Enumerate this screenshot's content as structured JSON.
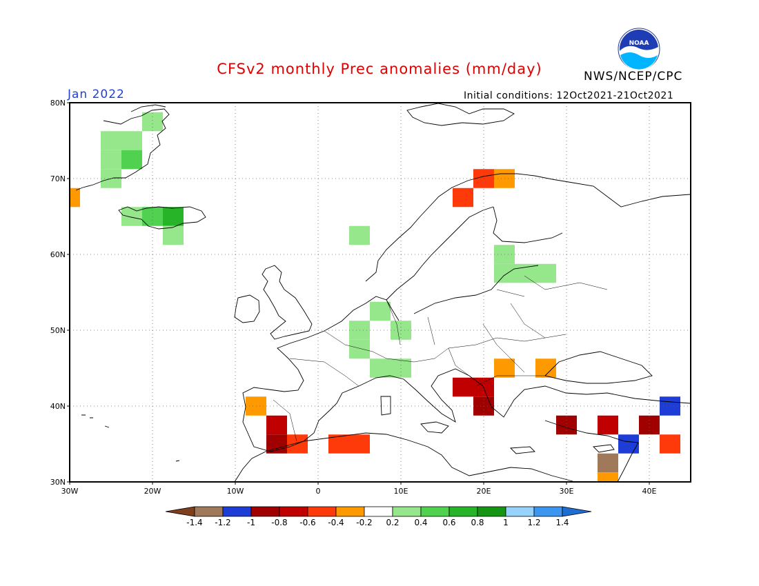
{
  "header": {
    "title": "CFSv2 monthly Prec anomalies (mm/day)",
    "agency": "NWS/NCEP/CPC",
    "valid_month": "Jan 2022",
    "initial_conditions": "Initial conditions: 12Oct2021-21Oct2021",
    "logo_text": "NOAA"
  },
  "map": {
    "lon_range": [
      -30,
      45
    ],
    "lat_range": [
      30,
      80
    ],
    "lon_ticks": [
      {
        "value": -30,
        "label": "30W"
      },
      {
        "value": -20,
        "label": "20W"
      },
      {
        "value": -10,
        "label": "10W"
      },
      {
        "value": 0,
        "label": "0"
      },
      {
        "value": 10,
        "label": "10E"
      },
      {
        "value": 20,
        "label": "20E"
      },
      {
        "value": 30,
        "label": "30E"
      },
      {
        "value": 40,
        "label": "40E"
      }
    ],
    "lat_ticks": [
      {
        "value": 80,
        "label": "80N"
      },
      {
        "value": 70,
        "label": "70N"
      },
      {
        "value": 60,
        "label": "60N"
      },
      {
        "value": 50,
        "label": "50N"
      },
      {
        "value": 40,
        "label": "40N"
      },
      {
        "value": 30,
        "label": "30N"
      }
    ],
    "gridlines": "dotted"
  },
  "colorbar": {
    "labels": [
      "-1.4",
      "-1.2",
      "-1",
      "-0.8",
      "-0.6",
      "-0.4",
      "-0.2",
      "0.2",
      "0.4",
      "0.6",
      "0.8",
      "1",
      "1.2",
      "1.4"
    ],
    "colors": {
      "below_-1.4": "#7f3f1f",
      "-1.4_-1.2": "#a0785a",
      "-1.2_-1": "#1e3cd6",
      "-1_-0.8": "#a00000",
      "-0.8_-0.6": "#c00000",
      "-0.6_-0.4": "#ff3a0a",
      "-0.4_-0.2": "#ff9900",
      "-0.2_0.2": "#ffffff",
      "0.2_0.4": "#96e68c",
      "0.4_0.6": "#50d250",
      "0.6_0.8": "#28b428",
      "0.8_1": "#149614",
      "1_1.2": "#96d2fa",
      "1.2_1.4": "#3c96f0",
      "above_1.4": "#1e6ed2"
    }
  },
  "chart_data": {
    "type": "heatmap",
    "title": "CFSv2 monthly Prec anomalies (mm/day)",
    "units": "mm/day",
    "grid_resolution_deg": 2.5,
    "cells": [
      {
        "lon": -25,
        "lat": 75,
        "value": 0.3
      },
      {
        "lon": -22.5,
        "lat": 75,
        "value": 0.3
      },
      {
        "lon": -20,
        "lat": 77.5,
        "value": 0.3
      },
      {
        "lon": -25,
        "lat": 72.5,
        "value": 0.3
      },
      {
        "lon": -22.5,
        "lat": 72.5,
        "value": 0.5
      },
      {
        "lon": -25,
        "lat": 70,
        "value": 0.3
      },
      {
        "lon": -30,
        "lat": 67.5,
        "value": -0.3
      },
      {
        "lon": -22.5,
        "lat": 65,
        "value": 0.3
      },
      {
        "lon": -20,
        "lat": 65,
        "value": 0.5
      },
      {
        "lon": -17.5,
        "lat": 65,
        "value": 0.7
      },
      {
        "lon": -17.5,
        "lat": 62.5,
        "value": 0.4
      },
      {
        "lon": 5,
        "lat": 62.5,
        "value": 0.3
      },
      {
        "lon": 22.5,
        "lat": 60,
        "value": 0.3
      },
      {
        "lon": 25,
        "lat": 57.5,
        "value": 0.3
      },
      {
        "lon": 27.5,
        "lat": 57.5,
        "value": 0.3
      },
      {
        "lon": 22.5,
        "lat": 57.5,
        "value": 0.3
      },
      {
        "lon": 7.5,
        "lat": 52.5,
        "value": 0.3
      },
      {
        "lon": 10,
        "lat": 50,
        "value": 0.3
      },
      {
        "lon": 5,
        "lat": 50,
        "value": 0.3
      },
      {
        "lon": 5,
        "lat": 47.5,
        "value": 0.3
      },
      {
        "lon": 10,
        "lat": 45,
        "value": 0.3
      },
      {
        "lon": 7.5,
        "lat": 45,
        "value": 0.4
      },
      {
        "lon": 17.5,
        "lat": 67.5,
        "value": -0.5
      },
      {
        "lon": 20,
        "lat": 70,
        "value": -0.5
      },
      {
        "lon": 22.5,
        "lat": 70,
        "value": -0.3
      },
      {
        "lon": -7.5,
        "lat": 40,
        "value": -0.4
      },
      {
        "lon": -5,
        "lat": 37.5,
        "value": -0.7
      },
      {
        "lon": -2.5,
        "lat": 35,
        "value": -0.5
      },
      {
        "lon": 2.5,
        "lat": 35,
        "value": -0.5
      },
      {
        "lon": 5,
        "lat": 35,
        "value": -0.5
      },
      {
        "lon": -5,
        "lat": 35,
        "value": -0.9
      },
      {
        "lon": 17.5,
        "lat": 42.5,
        "value": -0.7
      },
      {
        "lon": 20,
        "lat": 40,
        "value": -0.9
      },
      {
        "lon": 20,
        "lat": 42.5,
        "value": -0.7
      },
      {
        "lon": 22.5,
        "lat": 45,
        "value": -0.3
      },
      {
        "lon": 27.5,
        "lat": 45,
        "value": -0.3
      },
      {
        "lon": 30,
        "lat": 37.5,
        "value": -0.9
      },
      {
        "lon": 35,
        "lat": 37.5,
        "value": -0.7
      },
      {
        "lon": 40,
        "lat": 37.5,
        "value": -0.9
      },
      {
        "lon": 42.5,
        "lat": 40,
        "value": -1.1
      },
      {
        "lon": 37.5,
        "lat": 35,
        "value": -1.1
      },
      {
        "lon": 35,
        "lat": 32.5,
        "value": -1.3
      },
      {
        "lon": 42.5,
        "lat": 35,
        "value": -0.5
      },
      {
        "lon": 35,
        "lat": 30,
        "value": -0.3
      }
    ]
  }
}
